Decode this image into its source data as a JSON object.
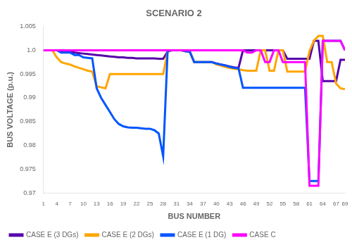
{
  "chart_data": {
    "type": "line",
    "title": "SCENARIO 2",
    "xlabel": "BUS NUMBER",
    "ylabel": "BUS VOLTAGE (p.u.)",
    "x": [
      1,
      2,
      3,
      4,
      5,
      6,
      7,
      8,
      9,
      10,
      11,
      12,
      13,
      14,
      15,
      16,
      17,
      18,
      19,
      20,
      21,
      22,
      23,
      24,
      25,
      26,
      27,
      28,
      29,
      30,
      31,
      32,
      33,
      34,
      35,
      36,
      37,
      38,
      39,
      40,
      41,
      42,
      43,
      44,
      45,
      46,
      47,
      48,
      49,
      50,
      51,
      52,
      53,
      54,
      55,
      56,
      57,
      58,
      59,
      60,
      61,
      62,
      63,
      64,
      65,
      66,
      67,
      68,
      69
    ],
    "xlim": [
      1,
      69
    ],
    "xticks": [
      1,
      4,
      7,
      10,
      13,
      16,
      19,
      22,
      25,
      28,
      31,
      34,
      37,
      40,
      43,
      46,
      49,
      52,
      55,
      58,
      61,
      64,
      67,
      69
    ],
    "ylim": [
      0.97,
      1.005
    ],
    "yticks": [
      0.97,
      0.975,
      0.98,
      0.985,
      0.99,
      0.995,
      {
        "value": 1.0,
        "label": "1.0"
      },
      1.005
    ],
    "grid": false,
    "legend": "lower left",
    "series": [
      {
        "name": "CASE E (3 DGs)",
        "color": "#5500AA",
        "values": [
          1.0,
          1.0,
          1.0,
          1.0,
          0.9998,
          0.9997,
          0.9996,
          0.9995,
          0.9994,
          0.9993,
          0.9992,
          0.9991,
          0.999,
          0.9989,
          0.9988,
          0.9987,
          0.9986,
          0.9985,
          0.9985,
          0.9984,
          0.9984,
          0.9983,
          0.9983,
          0.9983,
          0.9983,
          0.9983,
          0.9982,
          0.9982,
          0.9997,
          1.0,
          1.0,
          1.0,
          0.9998,
          0.9997,
          0.9975,
          0.9975,
          0.9975,
          0.9975,
          0.9975,
          0.9972,
          0.997,
          0.9968,
          0.9966,
          0.9964,
          0.9963,
          1.0,
          1.0,
          1.0,
          1.0,
          1.0,
          1.0,
          1.0,
          1.0,
          1.0,
          1.0,
          0.9982,
          0.9982,
          0.9982,
          0.9982,
          0.9982,
          0.9982,
          1.002,
          1.002,
          0.9935,
          0.9935,
          0.9935,
          0.9935,
          0.998,
          0.998
        ]
      },
      {
        "name": "CASE E (2 DGs)",
        "color": "#FFA500",
        "values": [
          1.0,
          1.0,
          1.0,
          0.9985,
          0.9975,
          0.9972,
          0.997,
          0.9966,
          0.9963,
          0.996,
          0.9957,
          0.9955,
          0.9924,
          0.9922,
          0.992,
          0.995,
          0.995,
          0.995,
          0.995,
          0.995,
          0.995,
          0.995,
          0.995,
          0.995,
          0.995,
          0.995,
          0.995,
          0.995,
          0.9997,
          1.0,
          1.0,
          1.0,
          0.9998,
          0.9997,
          0.9975,
          0.9975,
          0.9975,
          0.9975,
          0.9975,
          0.997,
          0.9968,
          0.9965,
          0.9963,
          0.9961,
          0.996,
          0.9958,
          0.9957,
          0.9957,
          0.9957,
          1.0,
          1.0,
          0.9957,
          0.9957,
          1.0,
          1.0,
          0.9955,
          0.9955,
          0.9955,
          0.9955,
          0.9955,
          0.9998,
          1.002,
          1.003,
          1.003,
          0.9975,
          0.9975,
          0.993,
          0.992,
          0.9918
        ]
      },
      {
        "name": "CASE E (1 DG)",
        "color": "#0055FF",
        "values": [
          1.0,
          1.0,
          1.0,
          1.0,
          0.9995,
          0.9995,
          0.9995,
          0.999,
          0.999,
          0.9985,
          0.9984,
          0.9983,
          0.992,
          0.99,
          0.9885,
          0.987,
          0.9855,
          0.9845,
          0.984,
          0.9838,
          0.9837,
          0.9837,
          0.9836,
          0.9835,
          0.9835,
          0.9832,
          0.9825,
          0.9777,
          0.9998,
          1.0,
          1.0,
          1.0,
          0.9998,
          0.9997,
          0.9975,
          0.9975,
          0.9975,
          0.9975,
          0.9975,
          0.9972,
          0.997,
          0.9968,
          0.9965,
          0.9963,
          0.9962,
          0.9921,
          0.9921,
          0.9921,
          0.9921,
          0.9921,
          0.9921,
          0.9921,
          0.9921,
          0.9921,
          0.9921,
          0.9921,
          0.9921,
          0.9921,
          0.9921,
          0.9921,
          0.9725,
          0.9725,
          0.9725,
          1.002,
          1.002,
          1.002,
          1.002,
          1.002,
          1.0
        ]
      },
      {
        "name": "CASE C",
        "color": "#FF00FF",
        "values": [
          1.0,
          1.0,
          1.0,
          1.0,
          1.0,
          1.0,
          1.0,
          1.0,
          1.0,
          1.0,
          1.0,
          1.0,
          1.0,
          1.0,
          1.0,
          1.0,
          1.0,
          1.0,
          1.0,
          1.0,
          1.0,
          1.0,
          1.0,
          1.0,
          1.0,
          1.0,
          1.0,
          1.0,
          1.0,
          1.0,
          1.0,
          1.0,
          1.0,
          1.0,
          1.0,
          1.0,
          1.0,
          1.0,
          1.0,
          1.0,
          1.0,
          1.0,
          1.0,
          1.0,
          1.0,
          1.0,
          0.9995,
          0.9995,
          1.0,
          1.0,
          0.9975,
          0.9975,
          1.0,
          1.0,
          0.9975,
          0.9975,
          0.9975,
          0.9975,
          0.9975,
          0.9975,
          0.9715,
          0.9715,
          0.9715,
          1.002,
          1.002,
          1.002,
          1.002,
          1.002,
          1.0
        ]
      }
    ]
  }
}
